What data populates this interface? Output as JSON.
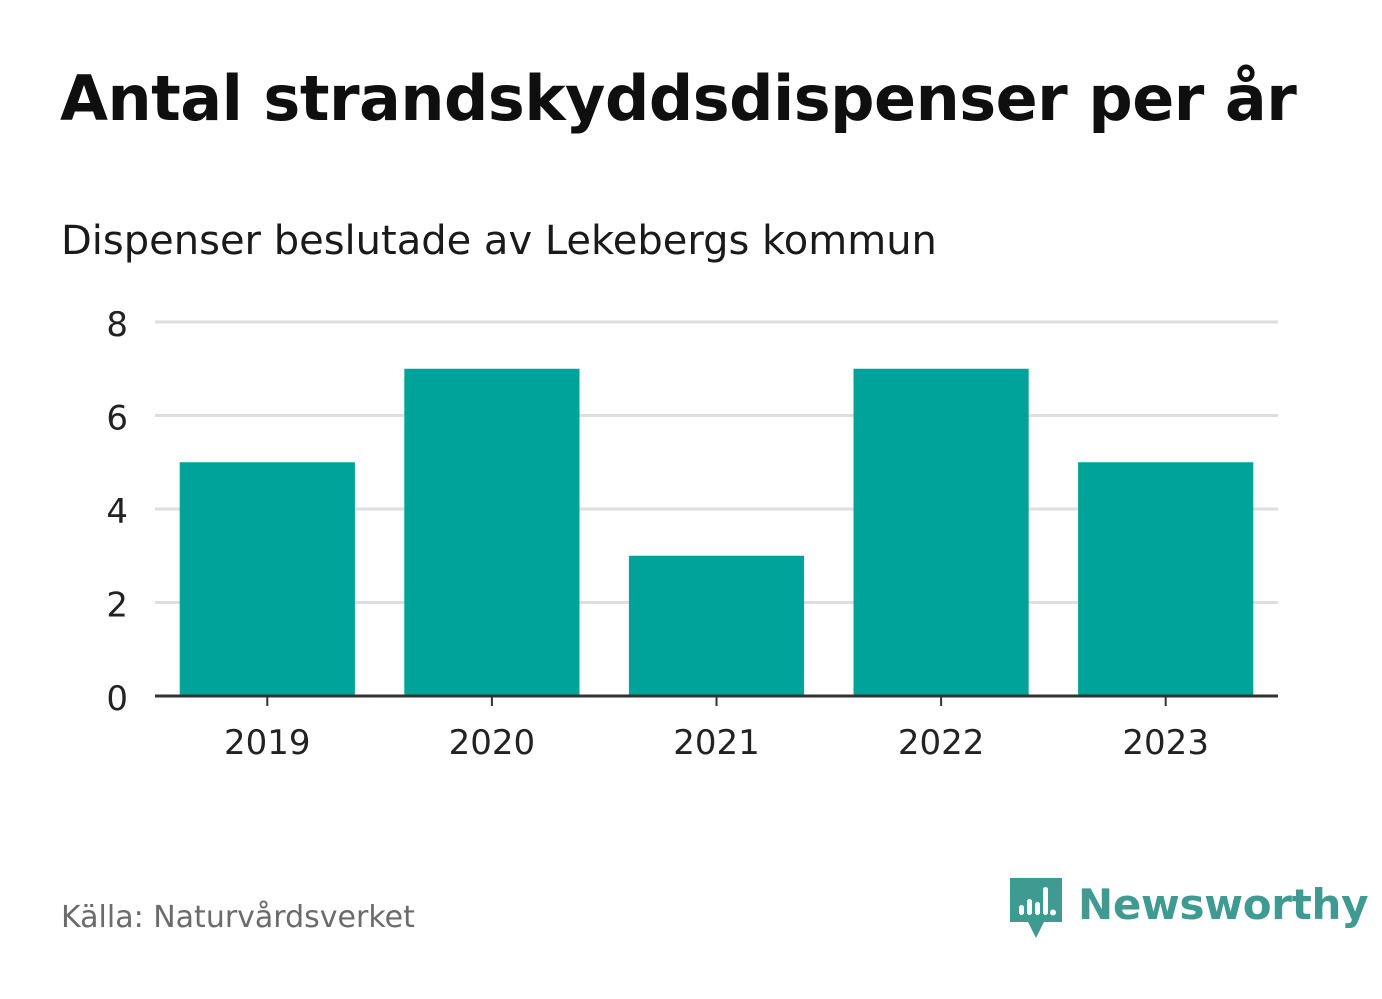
{
  "header": {
    "title": "Antal strandskyddsdispenser per år",
    "subtitle": "Dispenser beslutade av Lekebergs kommun"
  },
  "footer": {
    "source": "Källa: Naturvårdsverket",
    "brand_name": "Newsworthy"
  },
  "colors": {
    "bar": "#00a39a",
    "grid": "#dedede",
    "axis": "#333333",
    "brand": "#3f9a92"
  },
  "chart_data": {
    "type": "bar",
    "title": "Antal strandskyddsdispenser per år",
    "subtitle": "Dispenser beslutade av Lekebergs kommun",
    "xlabel": "",
    "ylabel": "",
    "categories": [
      "2019",
      "2020",
      "2021",
      "2022",
      "2023"
    ],
    "values": [
      5,
      7,
      3,
      7,
      5
    ],
    "ylim": [
      0,
      8
    ],
    "yticks": [
      0,
      2,
      4,
      6,
      8
    ],
    "grid": true,
    "legend": "none"
  }
}
